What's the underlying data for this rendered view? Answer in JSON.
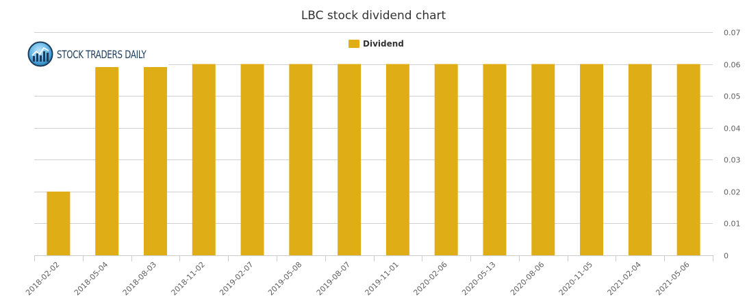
{
  "chart_data": {
    "type": "bar",
    "title": "LBC stock dividend chart",
    "xlabel": "",
    "ylabel": "",
    "categories": [
      "2018-02-02",
      "2018-05-04",
      "2018-08-03",
      "2018-11-02",
      "2019-02-07",
      "2019-05-08",
      "2019-08-07",
      "2019-11-01",
      "2020-02-06",
      "2020-05-13",
      "2020-08-06",
      "2020-11-05",
      "2021-02-04",
      "2021-05-06"
    ],
    "series": [
      {
        "name": "Dividend",
        "color": "#dfae17",
        "values": [
          0.02,
          0.06,
          0.06,
          0.06,
          0.06,
          0.06,
          0.06,
          0.06,
          0.06,
          0.06,
          0.06,
          0.06,
          0.06,
          0.06
        ]
      }
    ],
    "ylim": [
      0,
      0.07
    ],
    "yticks": [
      "0",
      "0.01",
      "0.02",
      "0.03",
      "0.04",
      "0.05",
      "0.06",
      "0.07"
    ],
    "y_axis_side": "right",
    "grid": true,
    "legend_position": "top-center"
  },
  "brand": {
    "name": "STOCK TRADERS DAILY",
    "logo_icon": "bar-chart-globe-icon",
    "color": "#1d3b5c"
  },
  "colors": {
    "grid": "#d0d0d0",
    "axis": "#cccccc",
    "tick_label": "#606060",
    "title": "#333333"
  }
}
